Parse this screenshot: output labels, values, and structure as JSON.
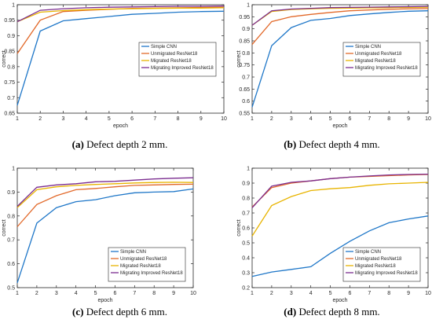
{
  "colors": {
    "simple_cnn": "#1f77c8",
    "unmigrated": "#e2692a",
    "migrated": "#e8b400",
    "improved": "#7b2d90"
  },
  "chart_data": [
    {
      "type": "line",
      "panel": "a",
      "caption_letter": "(a)",
      "caption_text": " Defect depth 2 mm.",
      "xlabel": "epoch",
      "ylabel": "correct",
      "xlim": [
        1,
        10
      ],
      "ylim": [
        0.65,
        1.0
      ],
      "yticks": [
        0.65,
        0.7,
        0.75,
        0.8,
        0.85,
        0.9,
        0.95,
        1
      ],
      "xticks": [
        1,
        2,
        3,
        4,
        5,
        6,
        7,
        8,
        9,
        10
      ],
      "legend_position": "center-right",
      "x": [
        1,
        2,
        3,
        4,
        5,
        6,
        7,
        8,
        9,
        10
      ],
      "series": [
        {
          "name": "Simple CNN",
          "color_key": "simple_cnn",
          "values": [
            0.675,
            0.915,
            0.948,
            0.955,
            0.962,
            0.969,
            0.972,
            0.976,
            0.978,
            0.979
          ]
        },
        {
          "name": "Unmigrated ResNet18",
          "color_key": "unmigrated",
          "values": [
            0.842,
            0.95,
            0.978,
            0.982,
            0.985,
            0.988,
            0.989,
            0.99,
            0.991,
            0.992
          ]
        },
        {
          "name": "Migrated ResNet18",
          "color_key": "migrated",
          "values": [
            0.945,
            0.976,
            0.981,
            0.984,
            0.986,
            0.987,
            0.988,
            0.989,
            0.989,
            0.99
          ]
        },
        {
          "name": "Migrating Improved ResNet18",
          "color_key": "improved",
          "values": [
            0.945,
            0.982,
            0.987,
            0.99,
            0.992,
            0.993,
            0.994,
            0.995,
            0.995,
            0.996
          ]
        }
      ]
    },
    {
      "type": "line",
      "panel": "b",
      "caption_letter": "(b)",
      "caption_text": " Defect depth 4 mm.",
      "xlabel": "epoch",
      "ylabel": "correct",
      "xlim": [
        1,
        10
      ],
      "ylim": [
        0.55,
        1.0
      ],
      "yticks": [
        0.55,
        0.6,
        0.65,
        0.7,
        0.75,
        0.8,
        0.85,
        0.9,
        0.95,
        1
      ],
      "xticks": [
        1,
        2,
        3,
        4,
        5,
        6,
        7,
        8,
        9,
        10
      ],
      "legend_position": "center-right",
      "x": [
        1,
        2,
        3,
        4,
        5,
        6,
        7,
        8,
        9,
        10
      ],
      "series": [
        {
          "name": "Simple CNN",
          "color_key": "simple_cnn",
          "values": [
            0.575,
            0.83,
            0.905,
            0.935,
            0.943,
            0.955,
            0.962,
            0.968,
            0.973,
            0.975
          ]
        },
        {
          "name": "Unmigrated ResNet18",
          "color_key": "unmigrated",
          "values": [
            0.835,
            0.93,
            0.95,
            0.96,
            0.968,
            0.975,
            0.978,
            0.981,
            0.983,
            0.984
          ]
        },
        {
          "name": "Migrated ResNet18",
          "color_key": "migrated",
          "values": [
            0.915,
            0.972,
            0.98,
            0.983,
            0.985,
            0.986,
            0.987,
            0.988,
            0.989,
            0.99
          ]
        },
        {
          "name": "Migrating Improved ResNet18",
          "color_key": "improved",
          "values": [
            0.915,
            0.975,
            0.982,
            0.985,
            0.988,
            0.989,
            0.99,
            0.991,
            0.992,
            0.993
          ]
        }
      ]
    },
    {
      "type": "line",
      "panel": "c",
      "caption_letter": "(c)",
      "caption_text": " Defect depth 6 mm.",
      "xlabel": "epoch",
      "ylabel": "correct",
      "xlim": [
        1,
        10
      ],
      "ylim": [
        0.5,
        1.0
      ],
      "yticks": [
        0.5,
        0.6,
        0.7,
        0.8,
        0.9,
        1
      ],
      "xticks": [
        1,
        2,
        3,
        4,
        5,
        6,
        7,
        8,
        9,
        10
      ],
      "legend_position": "bottom-right",
      "x": [
        1,
        2,
        3,
        4,
        5,
        6,
        7,
        8,
        9,
        10
      ],
      "series": [
        {
          "name": "Simple CNN",
          "color_key": "simple_cnn",
          "values": [
            0.52,
            0.77,
            0.835,
            0.86,
            0.868,
            0.885,
            0.897,
            0.9,
            0.902,
            0.913
          ]
        },
        {
          "name": "Unmigrated ResNet18",
          "color_key": "unmigrated",
          "values": [
            0.755,
            0.848,
            0.885,
            0.91,
            0.915,
            0.922,
            0.928,
            0.93,
            0.932,
            0.933
          ]
        },
        {
          "name": "Migrated ResNet18",
          "color_key": "migrated",
          "values": [
            0.835,
            0.91,
            0.922,
            0.928,
            0.932,
            0.935,
            0.938,
            0.94,
            0.941,
            0.94
          ]
        },
        {
          "name": "Migrating Improved ResNet18",
          "color_key": "improved",
          "values": [
            0.84,
            0.92,
            0.93,
            0.935,
            0.943,
            0.945,
            0.95,
            0.955,
            0.958,
            0.96
          ]
        }
      ]
    },
    {
      "type": "line",
      "panel": "d",
      "caption_letter": "(d)",
      "caption_text": " Defect depth 8 mm.",
      "xlabel": "epoch",
      "ylabel": "correct",
      "xlim": [
        1,
        10
      ],
      "ylim": [
        0.2,
        1.0
      ],
      "yticks": [
        0.2,
        0.3,
        0.4,
        0.5,
        0.6,
        0.7,
        0.8,
        0.9,
        1
      ],
      "xticks": [
        1,
        2,
        3,
        4,
        5,
        6,
        7,
        8,
        9,
        10
      ],
      "legend_position": "bottom-right",
      "x": [
        1,
        2,
        3,
        4,
        5,
        6,
        7,
        8,
        9,
        10
      ],
      "series": [
        {
          "name": "Simple CNN",
          "color_key": "simple_cnn",
          "values": [
            0.275,
            0.305,
            0.322,
            0.34,
            0.43,
            0.51,
            0.58,
            0.635,
            0.66,
            0.68
          ]
        },
        {
          "name": "Unmigrated ResNet18",
          "color_key": "unmigrated",
          "values": [
            0.74,
            0.87,
            0.9,
            0.915,
            0.93,
            0.94,
            0.945,
            0.95,
            0.955,
            0.958
          ]
        },
        {
          "name": "Migrated ResNet18",
          "color_key": "migrated",
          "values": [
            0.545,
            0.75,
            0.81,
            0.85,
            0.862,
            0.87,
            0.885,
            0.895,
            0.9,
            0.905
          ]
        },
        {
          "name": "Migrating Improved ResNet18",
          "color_key": "improved",
          "values": [
            0.735,
            0.88,
            0.905,
            0.915,
            0.93,
            0.94,
            0.948,
            0.955,
            0.958,
            0.96
          ]
        }
      ]
    }
  ]
}
